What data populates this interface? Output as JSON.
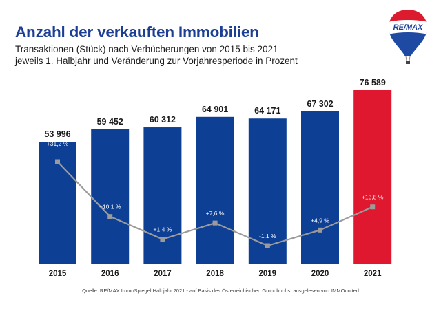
{
  "header": {
    "title": "Anzahl der verkauften Immobilien",
    "subtitle_line1": "Transaktionen (Stück) nach Verbücherungen von 2015 bis 2021",
    "subtitle_line2": "jeweils 1. Halbjahr und Veränderung zur Vorjahresperiode in Prozent"
  },
  "logo": {
    "text": "RE/MAX",
    "icon": "balloon-logo-icon"
  },
  "source": "Quelle: RE/MAX ImmoSpiegel Halbjahr 2021 - auf Basis des Österreichischen Grundbuchs, ausgelesen von IMMOunited",
  "colors": {
    "bar": "#0d3f94",
    "highlight_bar": "#e0182f",
    "line": "#9b9b9b",
    "title": "#1c3f94"
  },
  "chart_data": {
    "type": "bar",
    "title": "Anzahl der verkauften Immobilien",
    "xlabel": "",
    "ylabel": "",
    "grid": false,
    "categories": [
      "2015",
      "2016",
      "2017",
      "2018",
      "2019",
      "2020",
      "2021"
    ],
    "series": [
      {
        "name": "Transaktionen (Stück)",
        "type": "bar",
        "values": [
          53996,
          59452,
          60312,
          64901,
          64171,
          67302,
          76589
        ],
        "labels": [
          "53 996",
          "59 452",
          "60 312",
          "64 901",
          "64 171",
          "67 302",
          "76 589"
        ],
        "highlight_index": 6
      },
      {
        "name": "Veränderung zur Vorjahresperiode (%)",
        "type": "line",
        "values": [
          31.2,
          10.1,
          1.4,
          7.6,
          -1.1,
          4.9,
          13.8
        ],
        "labels": [
          "+31,2 %",
          "+10,1 %",
          "+1,4 %",
          "+7,6 %",
          "-1,1 %",
          "+4,9 %",
          "+13,8 %"
        ]
      }
    ],
    "bar_ylim": [
      0,
      76589
    ],
    "line_ylim": [
      -5,
      60
    ]
  }
}
